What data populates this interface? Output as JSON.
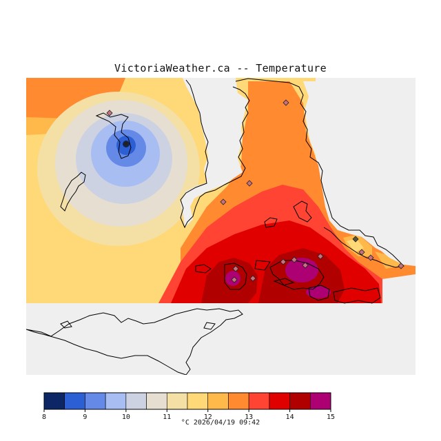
{
  "title": "VictoriaWeather.ca -- Temperature",
  "legend": {
    "caption": "°C  2026/04/19 09:42",
    "unit": "°C",
    "timestamp": "2026/04/19 09:42",
    "ticks": [
      "8",
      "9",
      "10",
      "11",
      "12",
      "13",
      "14",
      "15"
    ],
    "bins": [
      {
        "range": "8-8.5",
        "color": "#0d2766"
      },
      {
        "range": "8.5-9",
        "color": "#2d5fd4"
      },
      {
        "range": "9-9.5",
        "color": "#6489e6"
      },
      {
        "range": "9.5-10",
        "color": "#a8bdf2"
      },
      {
        "range": "10-10.5",
        "color": "#cdd2e2"
      },
      {
        "range": "10.5-11",
        "color": "#e6dfd1"
      },
      {
        "range": "11-11.5",
        "color": "#f4dfa5"
      },
      {
        "range": "11.5-12",
        "color": "#ffd877"
      },
      {
        "range": "12-12.5",
        "color": "#ffb84a"
      },
      {
        "range": "12.5-13",
        "color": "#ff8a30"
      },
      {
        "range": "13-13.5",
        "color": "#ff4433"
      },
      {
        "range": "13.5-14",
        "color": "#e00000"
      },
      {
        "range": "14-14.5",
        "color": "#b00000"
      },
      {
        "range": "14.5-15",
        "color": "#ad0073"
      }
    ]
  },
  "map": {
    "no_data_color": "#efefef",
    "station_marker": "diamond",
    "station_count": 16
  },
  "chart_data": {
    "type": "heatmap",
    "title": "VictoriaWeather.ca -- Temperature",
    "variable": "Temperature",
    "unit": "°C",
    "scale_min": 8,
    "scale_max": 15,
    "observed_min": 8,
    "observed_max": 15,
    "timestamp": "2026/04/19 09:42"
  }
}
